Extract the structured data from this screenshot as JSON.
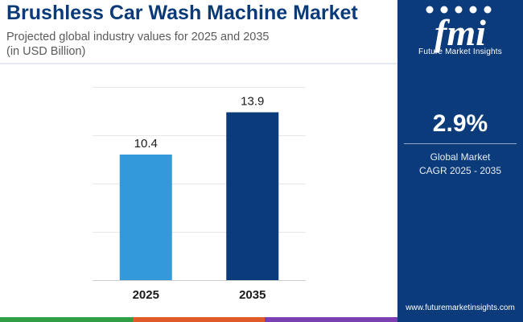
{
  "header": {
    "title": "Brushless Car Wash Machine Market",
    "subtitle_line1": "Projected global industry values for 2025 and 2035",
    "subtitle_line2": "(in USD Billion)"
  },
  "chart_data": {
    "type": "bar",
    "categories": [
      "2025",
      "2035"
    ],
    "values": [
      10.4,
      13.9
    ],
    "value_labels": [
      "10.4",
      "13.9"
    ],
    "ylim": [
      0,
      16
    ],
    "grid": true,
    "colors": [
      "#3399d8",
      "#0b3b7a"
    ]
  },
  "sidebar": {
    "brand_name": "Future Market Insights",
    "brand_letters": "fmi",
    "cagr_value": "2.9%",
    "cagr_label_line1": "Global Market",
    "cagr_label_line2": "CAGR 2025 - 2035",
    "website": "www.futuremarketinsights.com"
  },
  "colors": {
    "brand_navy": "#0b3b7a",
    "bar_light": "#3399d8",
    "title": "#0a3a78",
    "footer_strip": [
      "#2f9e44",
      "#e05a2b",
      "#7a3fb0"
    ]
  }
}
